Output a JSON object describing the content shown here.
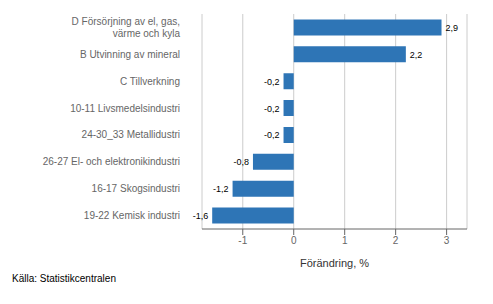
{
  "chart_data": {
    "type": "bar",
    "orientation": "horizontal",
    "categories": [
      "19-22 Kemisk industri",
      "16-17 Skogsindustri",
      "26-27 El- och elektronikindustri",
      "24-30_33 Metallidustri",
      "10-11 Livsmedelsindustri",
      "C Tillverkning",
      "B Utvinning av mineral",
      "D Försörjning av el, gas,\nvärme och kyla"
    ],
    "values": [
      -1.6,
      -1.2,
      -0.8,
      -0.2,
      -0.2,
      -0.2,
      2.2,
      2.9
    ],
    "value_labels": [
      "-1,6",
      "-1,2",
      "-0,8",
      "-0,2",
      "-0,2",
      "-0,2",
      "2,2",
      "2,9"
    ],
    "color": "#2E75B6",
    "xlim": [
      -1.8,
      3.4
    ],
    "xticks": [
      -1,
      0,
      1,
      2,
      3
    ],
    "xlabel": "Förändring, %",
    "annotations": [
      "Källa: Statistikcentralen"
    ],
    "grid": true
  }
}
